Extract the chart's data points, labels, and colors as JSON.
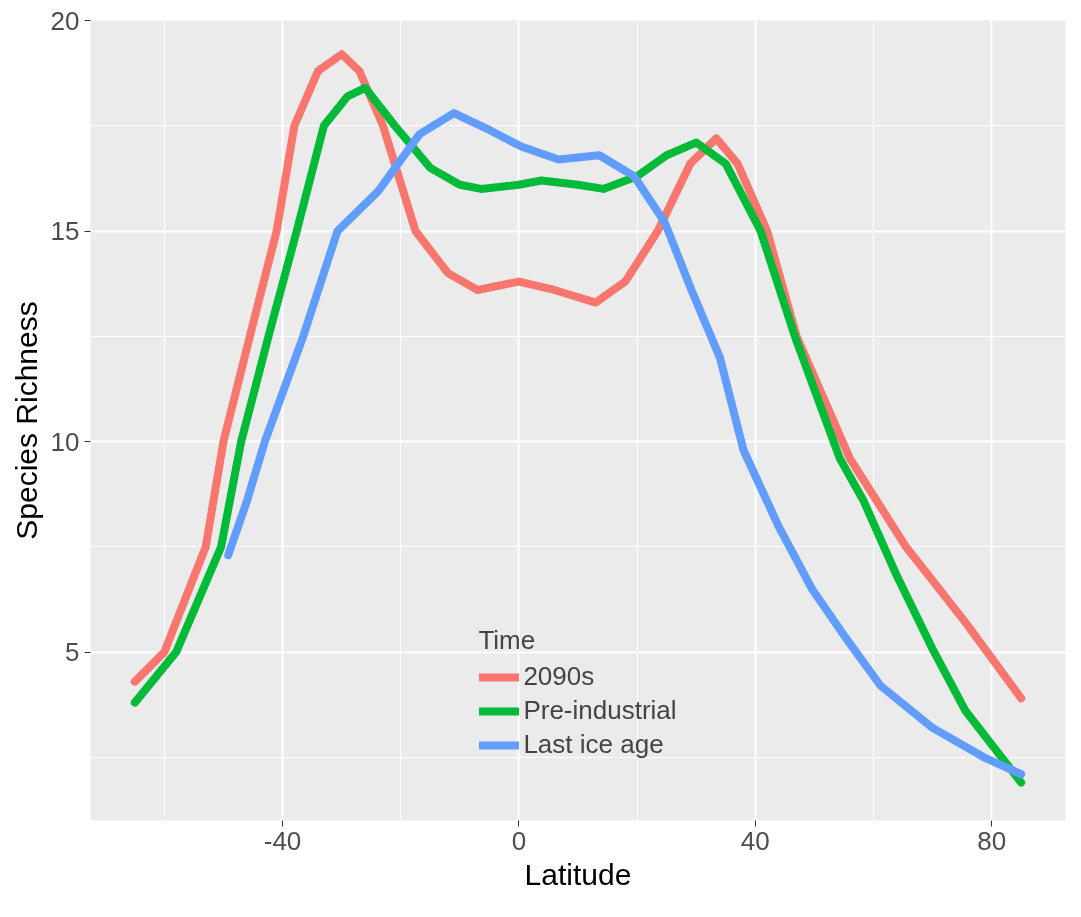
{
  "chart_data": {
    "type": "line",
    "xlabel": "Latitude",
    "ylabel": "Species Richness",
    "legend_title": "Time",
    "legend": "bottom",
    "grid": true,
    "xlim": [
      -72.5,
      92.5
    ],
    "xticks": [
      -40,
      0,
      40,
      80
    ],
    "ylim": [
      1,
      20
    ],
    "yticks": [
      5,
      10,
      15,
      20
    ],
    "series": [
      {
        "name": "2090s",
        "color": "#f8766d",
        "x": [
          -65,
          -60,
          -53,
          -50,
          -45,
          -41,
          -38,
          -34,
          -30,
          -27,
          -23,
          -17.5,
          -12,
          -7,
          0,
          6,
          13,
          18,
          23.5,
          29,
          33.4,
          37,
          42,
          47,
          56,
          65.5,
          75.6,
          85
        ],
        "values": [
          4.3,
          5.0,
          7.5,
          10,
          12.8,
          15,
          17.5,
          18.8,
          19.2,
          18.8,
          17.5,
          15,
          14,
          13.6,
          13.8,
          13.6,
          13.3,
          13.8,
          15,
          16.6,
          17.2,
          16.6,
          15,
          12.5,
          9.6,
          7.5,
          5.7,
          3.9
        ]
      },
      {
        "name": "Pre-industrial",
        "color": "#00ba38",
        "x": [
          -65,
          -58,
          -50.4,
          -47,
          -42,
          -37.6,
          -33,
          -29,
          -26,
          -21,
          -15,
          -10,
          -6.4,
          0,
          3.8,
          10,
          14.3,
          20,
          25,
          30,
          35,
          40.9,
          46.7,
          54.3,
          58.3,
          64,
          69.9,
          75.6,
          85
        ],
        "values": [
          3.8,
          5.0,
          7.5,
          10,
          12.7,
          15,
          17.5,
          18.2,
          18.4,
          17.5,
          16.5,
          16.1,
          16.0,
          16.1,
          16.2,
          16.1,
          16.0,
          16.3,
          16.8,
          17.1,
          16.6,
          15,
          12.5,
          9.6,
          8.6,
          6.8,
          5.1,
          3.6,
          1.9
        ]
      },
      {
        "name": "Last ice age",
        "color": "#619cff",
        "x": [
          -49.2,
          -46,
          -43,
          -36.5,
          -30.7,
          -23.8,
          -16.8,
          -11,
          -5,
          0.5,
          6.7,
          13.6,
          19.5,
          24.7,
          29.2,
          34,
          38,
          43.9,
          49.6,
          55.5,
          61.2,
          70,
          78.7,
          85
        ],
        "values": [
          7.3,
          8.6,
          10,
          12.5,
          15,
          15.95,
          17.3,
          17.8,
          17.4,
          17.0,
          16.7,
          16.8,
          16.3,
          15.2,
          13.6,
          12.0,
          9.8,
          8.0,
          6.5,
          5.3,
          4.2,
          3.2,
          2.5,
          2.1
        ]
      }
    ]
  }
}
